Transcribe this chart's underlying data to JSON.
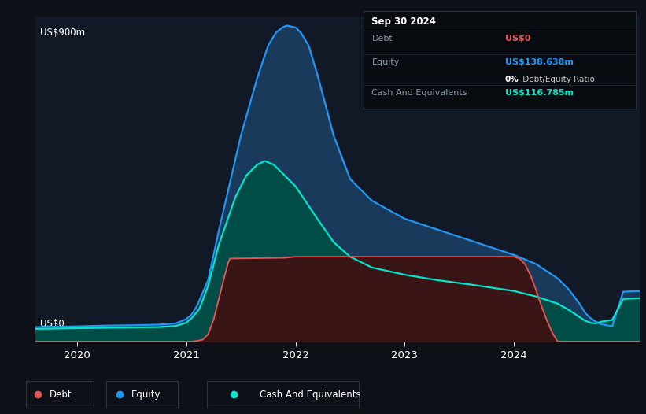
{
  "bg_color": "#0d1117",
  "plot_bg_color": "#111927",
  "grid_color": "#1a2535",
  "ylabel": "US$900m",
  "y0label": "US$0",
  "ylim": [
    0,
    900
  ],
  "xlim_start": 2019.62,
  "xlim_end": 2025.15,
  "xticks": [
    2020,
    2021,
    2022,
    2023,
    2024
  ],
  "equity_color": "#2196f3",
  "equity_fill": "#1a3a5c",
  "cash_color": "#00e5cc",
  "cash_fill": "#004d47",
  "debt_color": "#e05555",
  "debt_fill": "#3a1515",
  "info": {
    "date": "Sep 30 2024",
    "debt_label": "Debt",
    "debt_value": "US$0",
    "debt_color": "#e05555",
    "equity_label": "Equity",
    "equity_value": "US$138.638m",
    "equity_color": "#2196f3",
    "ratio_value": "0%",
    "ratio_label": " Debt/Equity Ratio",
    "cash_label": "Cash And Equivalents",
    "cash_value": "US$116.785m",
    "cash_color": "#00e5cc"
  },
  "equity_x": [
    2019.62,
    2020.0,
    2020.25,
    2020.5,
    2020.75,
    2020.9,
    2021.0,
    2021.05,
    2021.1,
    2021.2,
    2021.3,
    2021.5,
    2021.65,
    2021.75,
    2021.82,
    2021.88,
    2021.92,
    2022.0,
    2022.05,
    2022.12,
    2022.2,
    2022.35,
    2022.5,
    2022.7,
    2023.0,
    2023.3,
    2023.6,
    2024.0,
    2024.2,
    2024.4,
    2024.5,
    2024.55,
    2024.6,
    2024.65,
    2024.7,
    2024.75,
    2024.8,
    2024.9,
    2025.0,
    2025.15
  ],
  "equity_y": [
    40,
    42,
    44,
    45,
    47,
    50,
    62,
    75,
    100,
    170,
    310,
    570,
    730,
    820,
    855,
    870,
    875,
    870,
    855,
    820,
    740,
    570,
    450,
    390,
    340,
    310,
    280,
    240,
    215,
    175,
    145,
    125,
    105,
    80,
    65,
    55,
    48,
    42,
    138,
    140
  ],
  "cash_x": [
    2019.62,
    2020.0,
    2020.25,
    2020.5,
    2020.75,
    2020.9,
    2021.0,
    2021.05,
    2021.12,
    2021.2,
    2021.3,
    2021.45,
    2021.55,
    2021.65,
    2021.72,
    2021.8,
    2021.9,
    2022.0,
    2022.1,
    2022.2,
    2022.35,
    2022.5,
    2022.7,
    2023.0,
    2023.3,
    2023.6,
    2024.0,
    2024.2,
    2024.4,
    2024.5,
    2024.55,
    2024.6,
    2024.65,
    2024.7,
    2024.75,
    2024.8,
    2024.9,
    2025.0,
    2025.15
  ],
  "cash_y": [
    35,
    37,
    38,
    39,
    40,
    43,
    52,
    65,
    90,
    155,
    270,
    400,
    460,
    490,
    500,
    490,
    460,
    430,
    385,
    340,
    275,
    235,
    205,
    185,
    170,
    158,
    140,
    125,
    105,
    88,
    78,
    68,
    58,
    52,
    50,
    55,
    60,
    118,
    120
  ],
  "debt_x": [
    2019.62,
    2020.0,
    2020.5,
    2021.0,
    2021.05,
    2021.1,
    2021.15,
    2021.2,
    2021.25,
    2021.3,
    2021.35,
    2021.38,
    2021.4,
    2021.9,
    2022.0,
    2022.5,
    2023.0,
    2023.5,
    2024.0,
    2024.05,
    2024.1,
    2024.15,
    2024.2,
    2024.25,
    2024.3,
    2024.35,
    2024.38,
    2024.4,
    2024.9,
    2025.0,
    2025.15
  ],
  "debt_y": [
    0,
    0,
    0,
    0,
    0,
    2,
    5,
    20,
    60,
    120,
    180,
    215,
    230,
    232,
    235,
    235,
    235,
    235,
    235,
    230,
    215,
    185,
    145,
    100,
    60,
    25,
    10,
    0,
    0,
    0,
    0
  ]
}
